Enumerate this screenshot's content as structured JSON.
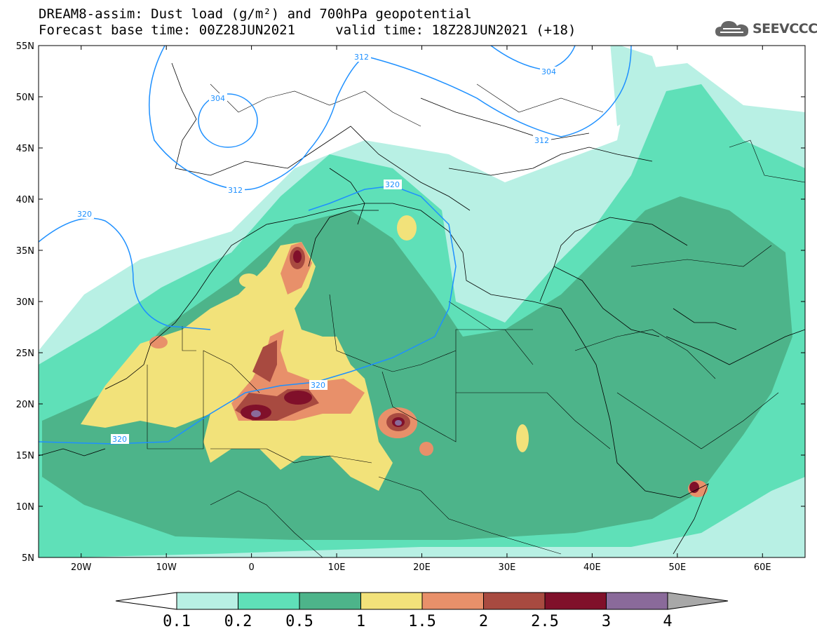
{
  "title": {
    "line1": "DREAM8-assim: Dust load (g/m²) and 700hPa geopotential",
    "line2": "Forecast base time: 00Z28JUN2021     valid time: 18Z28JUN2021 (+18)"
  },
  "logo": {
    "text": "SEEVCCC",
    "icon": "cloud-icon"
  },
  "map": {
    "lat_labels": [
      "55N",
      "50N",
      "45N",
      "40N",
      "35N",
      "30N",
      "25N",
      "20N",
      "15N",
      "10N",
      "5N"
    ],
    "lon_labels": [
      "20W",
      "10W",
      "0",
      "10E",
      "20E",
      "30E",
      "40E",
      "50E",
      "60E"
    ],
    "extent": {
      "lon_min": -25,
      "lon_max": 65,
      "lat_min": 5,
      "lat_max": 55
    }
  },
  "contour_labels": [
    "312",
    "304",
    "312",
    "304",
    "312",
    "320",
    "320",
    "320",
    "320"
  ],
  "colorbar": {
    "labels": [
      "0.1",
      "0.2",
      "0.5",
      "1",
      "1.5",
      "2",
      "2.5",
      "3",
      "4"
    ],
    "colors": [
      "#b8f0e4",
      "#5fe0b8",
      "#4db48a",
      "#f2e27a",
      "#e8906a",
      "#a84a40",
      "#80102a",
      "#8a6a9a",
      "#a8a8a8"
    ]
  }
}
